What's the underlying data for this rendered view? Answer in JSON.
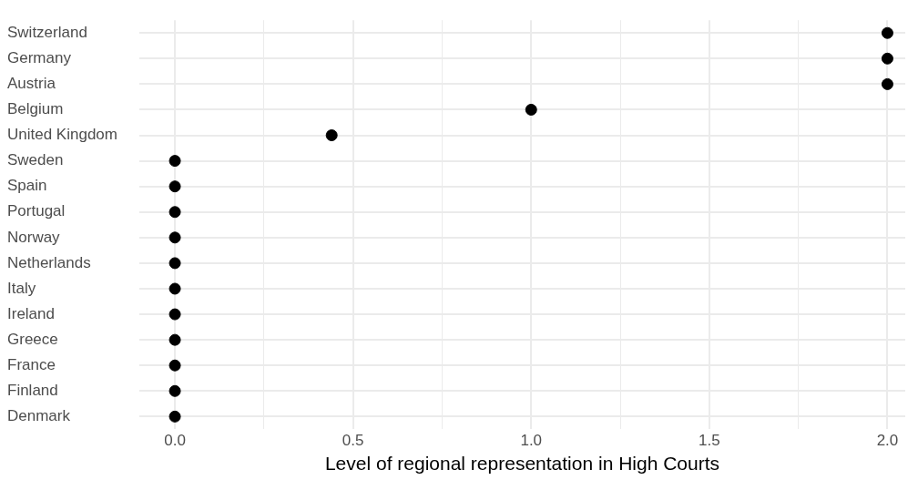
{
  "chart_data": {
    "type": "scatter",
    "orientation": "horizontal",
    "xlabel": "Level of regional representation in High Courts",
    "categories": [
      "Switzerland",
      "Germany",
      "Austria",
      "Belgium",
      "United Kingdom",
      "Sweden",
      "Spain",
      "Portugal",
      "Norway",
      "Netherlands",
      "Italy",
      "Ireland",
      "Greece",
      "France",
      "Finland",
      "Denmark"
    ],
    "values": [
      2,
      2,
      2,
      1,
      0.44,
      0,
      0,
      0,
      0,
      0,
      0,
      0,
      0,
      0,
      0,
      0
    ],
    "color": "#000000",
    "marker": "circle",
    "grid": true,
    "legend": false,
    "xlim": [
      -0.1,
      2.05
    ],
    "xticks": [
      {
        "value": 0,
        "label": "0.0"
      },
      {
        "value": 0.25,
        "label": null
      },
      {
        "value": 0.5,
        "label": "0.5"
      },
      {
        "value": 0.75,
        "label": null
      },
      {
        "value": 1,
        "label": "1.0"
      },
      {
        "value": 1.25,
        "label": null
      },
      {
        "value": 1.5,
        "label": "1.5"
      },
      {
        "value": 1.75,
        "label": null
      },
      {
        "value": 2,
        "label": "2.0"
      }
    ]
  }
}
